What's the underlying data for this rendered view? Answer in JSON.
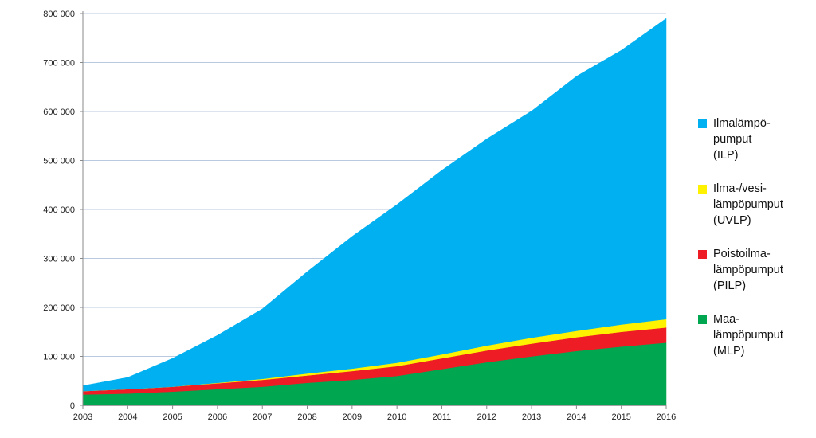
{
  "chart_data": {
    "type": "area",
    "stacked": true,
    "x": [
      2003,
      2004,
      2005,
      2006,
      2007,
      2008,
      2009,
      2010,
      2011,
      2012,
      2013,
      2014,
      2015,
      2016
    ],
    "xtick_labels": [
      "2003",
      "2004",
      "2005",
      "2006",
      "2007",
      "2008",
      "2009",
      "2010",
      "2011",
      "2012",
      "2013",
      "2014",
      "2015",
      "2016"
    ],
    "ylim": [
      0,
      800000
    ],
    "ytick_values": [
      0,
      100000,
      200000,
      300000,
      400000,
      500000,
      600000,
      700000,
      800000
    ],
    "ytick_labels": [
      "0",
      "100 000",
      "200 000",
      "300 000",
      "400 000",
      "500 000",
      "600 000",
      "700 000",
      "800 000"
    ],
    "grid": true,
    "legend_position": "right",
    "series": [
      {
        "name": "Maa-lämpöpumput (MLP)",
        "legend_lines": [
          "Maa-",
          "lämpöpumput",
          "(MLP)"
        ],
        "color": "#00a650",
        "values": [
          22000,
          24000,
          28000,
          33000,
          38000,
          46000,
          52000,
          60000,
          74000,
          88000,
          100000,
          111000,
          120000,
          128000
        ]
      },
      {
        "name": "Poistoilma-lämpöpumput (PILP)",
        "legend_lines": [
          "Poistoilma-",
          "lämpöpumput",
          "(PILP)"
        ],
        "color": "#ee1c25",
        "values": [
          7000,
          9000,
          10000,
          12000,
          14000,
          15000,
          18000,
          20000,
          22000,
          24000,
          26000,
          28000,
          30000,
          31000
        ]
      },
      {
        "name": "Ilma-/vesi-lämpöpumput (UVLP)",
        "legend_lines": [
          "Ilma-/vesi-",
          "lämpöpumput",
          "(UVLP)"
        ],
        "color": "#fff200",
        "values": [
          0,
          0,
          0,
          1000,
          2000,
          4000,
          5000,
          7000,
          8000,
          10000,
          12000,
          13000,
          15000,
          17000
        ]
      },
      {
        "name": "Ilmalämpö-pumput (ILP)",
        "legend_lines": [
          "Ilmalämpö-",
          "pumput",
          "(ILP)"
        ],
        "color": "#00b0f0",
        "values": [
          11000,
          24000,
          58000,
          97000,
          143000,
          208000,
          270000,
          323000,
          376000,
          422000,
          463000,
          520000,
          560000,
          614000
        ]
      }
    ],
    "legend_order": [
      3,
      2,
      1,
      0
    ]
  }
}
